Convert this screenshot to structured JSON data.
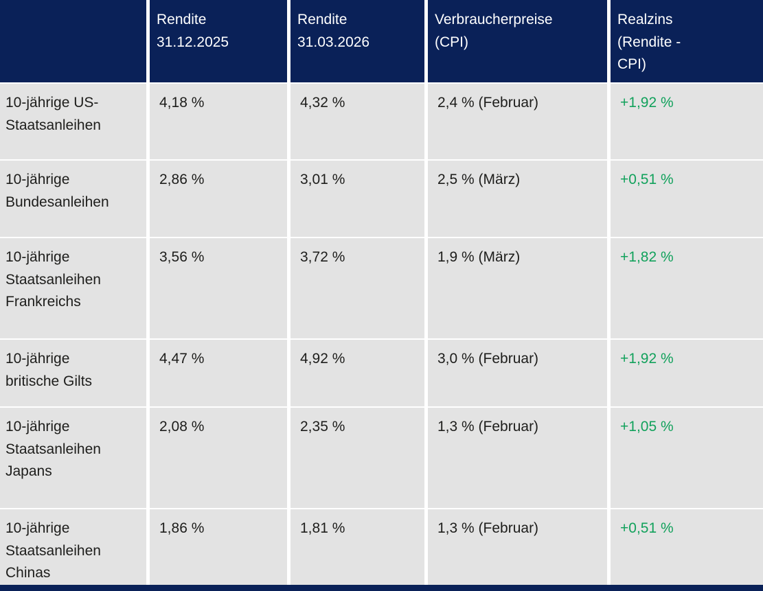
{
  "colors": {
    "header_bg": "#0A2158",
    "cell_bg": "#E3E3E3",
    "header_text": "#FFFFFF",
    "body_text": "#1D1D1B",
    "positive_green": "#11A15B",
    "gap": "#FFFFFF"
  },
  "header_display": [
    "",
    "Rendite\n31.12.2025",
    "Rendite\n31.03.2026",
    "Verbraucherpreise\n(CPI)",
    "Realzins\n(Rendite -\nCPI)"
  ],
  "row_labels_display": [
    "10-jährige US-\nStaatsanleihen",
    "10-jährige\nBundesanleihen",
    "10-jährige\nStaatsanleihen\nFrankreichs",
    "10-jährige\nbritische Gilts",
    "10-jährige\nStaatsanleihen\nJapans",
    "10-jährige\nStaatsanleihen\nChinas"
  ],
  "chart_data": {
    "type": "table",
    "columns": [
      "",
      "Rendite 31.12.2025",
      "Rendite 31.03.2026",
      "Verbraucherpreise (CPI)",
      "Realzins (Rendite - CPI)"
    ],
    "rows": [
      [
        "10-jährige US-Staatsanleihen",
        "4,18 %",
        "4,32 %",
        "2,4 % (Februar)",
        "+1,92 %"
      ],
      [
        "10-jährige Bundesanleihen",
        "2,86 %",
        "3,01 %",
        "2,5 % (März)",
        "+0,51 %"
      ],
      [
        "10-jährige Staatsanleihen Frankreichs",
        "3,56 %",
        "3,72 %",
        "1,9 % (März)",
        "+1,82 %"
      ],
      [
        "10-jährige britische Gilts",
        "4,47 %",
        "4,92 %",
        "3,0 % (Februar)",
        "+1,92 %"
      ],
      [
        "10-jährige Staatsanleihen Japans",
        "2,08 %",
        "2,35 %",
        "1,3 % (Februar)",
        "+1,05 %"
      ],
      [
        "10-jährige Staatsanleihen Chinas",
        "1,86 %",
        "1,81 %",
        "1,3 % (Februar)",
        "+0,51 %"
      ]
    ],
    "notes": "Realzins column values rendered in green (positive)"
  }
}
